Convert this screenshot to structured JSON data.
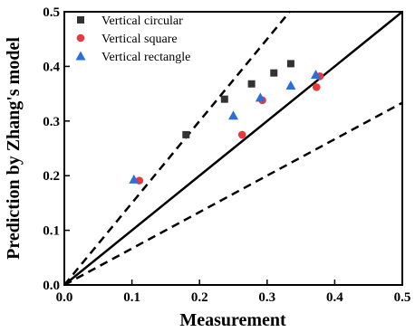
{
  "chart_data": {
    "type": "scatter",
    "xlabel": "Measurement",
    "ylabel": "Prediction by Zhang's model",
    "xlim": [
      0.0,
      0.5
    ],
    "ylim": [
      0.0,
      0.5
    ],
    "xticks": [
      "0.0",
      "0.1",
      "0.2",
      "0.3",
      "0.4",
      "0.5"
    ],
    "yticks": [
      "0.0",
      "0.1",
      "0.2",
      "0.3",
      "0.4",
      "0.5"
    ],
    "grid": false,
    "legend_position": "top-left",
    "reference_lines": [
      {
        "style": "solid",
        "slope": 1.0
      },
      {
        "style": "dashed",
        "slope": 1.5
      },
      {
        "style": "dashed",
        "slope": 0.667
      }
    ],
    "series": [
      {
        "name": "Vertical circular",
        "marker": "square",
        "color": "#333333",
        "points": [
          [
            0.18,
            0.275
          ],
          [
            0.237,
            0.34
          ],
          [
            0.277,
            0.368
          ],
          [
            0.31,
            0.388
          ],
          [
            0.335,
            0.405
          ]
        ]
      },
      {
        "name": "Vertical square",
        "marker": "circle",
        "color": "#e8393e",
        "points": [
          [
            0.111,
            0.191
          ],
          [
            0.263,
            0.275
          ],
          [
            0.293,
            0.338
          ],
          [
            0.373,
            0.362
          ],
          [
            0.378,
            0.382
          ]
        ]
      },
      {
        "name": "Vertical rectangle",
        "marker": "triangle",
        "color": "#2a6fdb",
        "points": [
          [
            0.103,
            0.193
          ],
          [
            0.25,
            0.31
          ],
          [
            0.29,
            0.343
          ],
          [
            0.335,
            0.365
          ],
          [
            0.372,
            0.385
          ]
        ]
      }
    ]
  }
}
